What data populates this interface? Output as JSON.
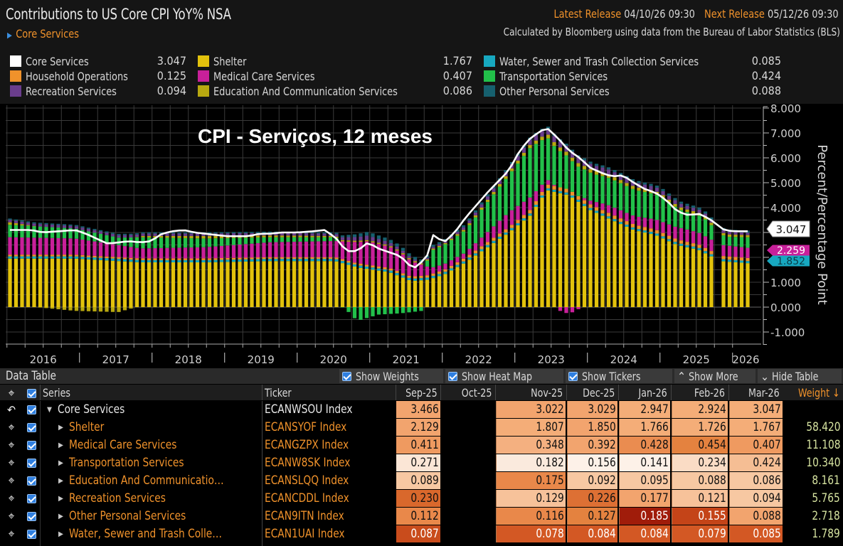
{
  "header": {
    "title": "Contributions to US Core CPI YoY% NSA",
    "selected_series": "Core Services",
    "latest_release_label": "Latest Release",
    "latest_release_value": "04/10/26 09:30",
    "next_release_label": "Next Release",
    "next_release_value": "05/12/26 09:30",
    "source_note": "Calculated by Bloomberg using data from the Bureau of Labor Statistics (BLS)"
  },
  "legend": [
    {
      "name": "Core Services",
      "value": "3.047",
      "color": "#ffffff"
    },
    {
      "name": "Household Operations",
      "value": "0.125",
      "color": "#f0922b"
    },
    {
      "name": "Recreation Services",
      "value": "0.094",
      "color": "#6a3d8c"
    },
    {
      "name": "Shelter",
      "value": "1.767",
      "color": "#e2c20c"
    },
    {
      "name": "Medical Care Services",
      "value": "0.407",
      "color": "#c8209a"
    },
    {
      "name": "Education And Communication Services",
      "value": "0.086",
      "color": "#b8a810"
    },
    {
      "name": "Water, Sewer and Trash Collection Services",
      "value": "0.085",
      "color": "#17a8c0"
    },
    {
      "name": "Transportation Services",
      "value": "0.424",
      "color": "#22c04a"
    },
    {
      "name": "Other Personal Services",
      "value": "0.088",
      "color": "#16606e"
    }
  ],
  "overlay_title": "CPI - Serviços, 12 meses",
  "chart_data": {
    "type": "bar",
    "stacked": true,
    "title": "Contributions to US Core CPI YoY% NSA",
    "ylabel": "Percent/Percentage Point",
    "xlabel": "",
    "ylim": [
      -1.5,
      8.0
    ],
    "yticks": [
      "8.000",
      "7.000",
      "6.000",
      "5.000",
      "4.000",
      "1.000",
      "0.000",
      "-1.000"
    ],
    "year_labels": [
      "2016",
      "2017",
      "2018",
      "2019",
      "2020",
      "2021",
      "2022",
      "2023",
      "2024",
      "2025",
      "2026"
    ],
    "start": "2016-01",
    "end": "2026-03",
    "missing": [
      "2025-10"
    ],
    "grid": true,
    "legend_position": "top",
    "last_value_labels": [
      {
        "value": "3.047",
        "color": "#ffffff",
        "text_color": "#111111"
      },
      {
        "value": "2.259",
        "color": "#c8209a",
        "text_color": "#ffffff"
      },
      {
        "value": "1.852",
        "color": "#17a8c0",
        "text_color": "#0a3a44"
      }
    ],
    "total_series": {
      "name": "Core Services",
      "color": "#ffffff"
    },
    "total_anchors": [
      [
        0,
        3.1
      ],
      [
        2,
        3.1
      ],
      [
        4,
        3.1
      ],
      [
        6,
        3.0
      ],
      [
        9,
        3.05
      ],
      [
        12,
        3.1
      ],
      [
        14,
        2.95
      ],
      [
        18,
        2.55
      ],
      [
        20,
        2.6
      ],
      [
        22,
        2.65
      ],
      [
        24,
        2.6
      ],
      [
        26,
        2.65
      ],
      [
        28,
        2.95
      ],
      [
        30,
        3.05
      ],
      [
        32,
        3.1
      ],
      [
        34,
        3.0
      ],
      [
        36,
        2.95
      ],
      [
        40,
        2.85
      ],
      [
        44,
        2.85
      ],
      [
        46,
        2.95
      ],
      [
        48,
        2.95
      ],
      [
        50,
        3.0
      ],
      [
        53,
        3.0
      ],
      [
        56,
        3.05
      ],
      [
        58,
        3.1
      ],
      [
        60,
        2.8
      ],
      [
        62,
        2.25
      ],
      [
        64,
        2.25
      ],
      [
        66,
        2.6
      ],
      [
        68,
        2.35
      ],
      [
        70,
        2.2
      ],
      [
        72,
        2.05
      ],
      [
        74,
        1.6
      ],
      [
        75,
        1.6
      ],
      [
        77,
        2.1
      ],
      [
        78,
        2.9
      ],
      [
        80,
        2.6
      ],
      [
        82,
        3.0
      ],
      [
        84,
        3.6
      ],
      [
        88,
        4.6
      ],
      [
        92,
        5.5
      ],
      [
        94,
        6.3
      ],
      [
        96,
        6.8
      ],
      [
        98,
        7.1
      ],
      [
        99,
        7.2
      ],
      [
        101,
        6.8
      ],
      [
        103,
        6.3
      ],
      [
        105,
        6.0
      ],
      [
        107,
        5.6
      ],
      [
        109,
        5.4
      ],
      [
        111,
        5.25
      ],
      [
        113,
        5.3
      ],
      [
        115,
        5.0
      ],
      [
        117,
        4.75
      ],
      [
        119,
        4.6
      ],
      [
        121,
        4.3
      ],
      [
        123,
        3.85
      ],
      [
        125,
        3.7
      ],
      [
        127,
        3.75
      ],
      [
        129,
        3.55
      ],
      [
        131,
        3.15
      ],
      [
        133,
        3.05
      ],
      [
        135,
        3.05
      ],
      [
        136,
        3.047
      ]
    ],
    "series": [
      {
        "name": "Shelter",
        "color": "#e2c20c",
        "anchors": [
          [
            0,
            1.95
          ],
          [
            12,
            1.95
          ],
          [
            24,
            1.8
          ],
          [
            36,
            1.8
          ],
          [
            48,
            1.85
          ],
          [
            60,
            1.85
          ],
          [
            64,
            1.6
          ],
          [
            70,
            1.4
          ],
          [
            74,
            1.05
          ],
          [
            77,
            1.1
          ],
          [
            80,
            1.3
          ],
          [
            84,
            1.8
          ],
          [
            88,
            2.4
          ],
          [
            92,
            3.0
          ],
          [
            96,
            3.7
          ],
          [
            99,
            4.7
          ],
          [
            103,
            4.5
          ],
          [
            107,
            3.9
          ],
          [
            111,
            3.5
          ],
          [
            115,
            3.1
          ],
          [
            119,
            2.9
          ],
          [
            123,
            2.5
          ],
          [
            127,
            2.3
          ],
          [
            131,
            1.85
          ],
          [
            136,
            1.767
          ]
        ]
      },
      {
        "name": "Water, Sewer and Trash Collection Services",
        "color": "#17a8c0",
        "anchors": [
          [
            0,
            0.09
          ],
          [
            136,
            0.085
          ]
        ]
      },
      {
        "name": "Household Operations",
        "color": "#f0922b",
        "anchors": [
          [
            0,
            0.07
          ],
          [
            60,
            0.07
          ],
          [
            80,
            0.1
          ],
          [
            100,
            0.15
          ],
          [
            136,
            0.125
          ]
        ]
      },
      {
        "name": "Medical Care Services",
        "color": "#c8209a",
        "anchors": [
          [
            0,
            0.7
          ],
          [
            12,
            0.65
          ],
          [
            24,
            0.4
          ],
          [
            36,
            0.45
          ],
          [
            48,
            0.6
          ],
          [
            60,
            0.65
          ],
          [
            66,
            0.95
          ],
          [
            72,
            0.8
          ],
          [
            78,
            0.25
          ],
          [
            84,
            0.2
          ],
          [
            92,
            0.6
          ],
          [
            96,
            0.5
          ],
          [
            100,
            0.1
          ],
          [
            102,
            -0.25
          ],
          [
            104,
            -0.2
          ],
          [
            106,
            0.1
          ],
          [
            110,
            0.3
          ],
          [
            116,
            0.35
          ],
          [
            124,
            0.5
          ],
          [
            130,
            0.45
          ],
          [
            136,
            0.407
          ]
        ]
      },
      {
        "name": "Transportation Services",
        "color": "#22c04a",
        "anchors": [
          [
            0,
            0.5
          ],
          [
            12,
            0.4
          ],
          [
            20,
            0.3
          ],
          [
            24,
            0.45
          ],
          [
            36,
            0.35
          ],
          [
            48,
            0.2
          ],
          [
            60,
            0.15
          ],
          [
            62,
            -0.1
          ],
          [
            64,
            -0.55
          ],
          [
            68,
            -0.3
          ],
          [
            72,
            -0.25
          ],
          [
            76,
            -0.15
          ],
          [
            78,
            0.7
          ],
          [
            84,
            0.9
          ],
          [
            92,
            1.5
          ],
          [
            96,
            2.0
          ],
          [
            100,
            1.6
          ],
          [
            104,
            1.2
          ],
          [
            108,
            1.1
          ],
          [
            112,
            1.1
          ],
          [
            116,
            1.05
          ],
          [
            120,
            1.0
          ],
          [
            124,
            0.7
          ],
          [
            128,
            0.7
          ],
          [
            132,
            0.35
          ],
          [
            136,
            0.424
          ]
        ]
      },
      {
        "name": "Education And Communication Services",
        "color": "#b8a810",
        "anchors": [
          [
            0,
            0.1
          ],
          [
            12,
            -0.15
          ],
          [
            20,
            -0.2
          ],
          [
            24,
            0.05
          ],
          [
            36,
            0.1
          ],
          [
            60,
            0.05
          ],
          [
            80,
            0.05
          ],
          [
            100,
            0.15
          ],
          [
            136,
            0.086
          ]
        ]
      },
      {
        "name": "Recreation Services",
        "color": "#6a3d8c",
        "anchors": [
          [
            0,
            0.1
          ],
          [
            60,
            0.1
          ],
          [
            66,
            0.18
          ],
          [
            76,
            0.05
          ],
          [
            90,
            0.15
          ],
          [
            100,
            0.25
          ],
          [
            112,
            0.2
          ],
          [
            136,
            0.094
          ]
        ]
      },
      {
        "name": "Other Personal Services",
        "color": "#16606e",
        "anchors": [
          [
            0,
            0.05
          ],
          [
            60,
            0.05
          ],
          [
            66,
            0.15
          ],
          [
            80,
            0.08
          ],
          [
            136,
            0.088
          ]
        ]
      }
    ]
  },
  "table": {
    "title": "Data Table",
    "toolbar": [
      {
        "label": "Show Weights",
        "checked": true
      },
      {
        "label": "Show Heat Map",
        "checked": true
      },
      {
        "label": "Show Tickers",
        "checked": true
      },
      {
        "label": "Show More",
        "icon": "chevrons-up"
      },
      {
        "label": "Hide Table",
        "icon": "chevrons-down"
      }
    ],
    "columns": {
      "series": "Series",
      "ticker": "Ticker",
      "months": [
        "Sep-25",
        "Oct-25",
        "Nov-25",
        "Dec-25",
        "Jan-26",
        "Feb-26",
        "Mar-26"
      ],
      "weight": "Weight ↓"
    },
    "rows": [
      {
        "series": "Core Services",
        "ticker": "ECANWSOU Index",
        "values": [
          "3.466",
          "",
          "3.022",
          "3.029",
          "2.947",
          "2.924",
          "3.047"
        ],
        "weight": "",
        "parent": true
      },
      {
        "series": "Shelter",
        "ticker": "ECANSYOF Index",
        "values": [
          "2.129",
          "",
          "1.807",
          "1.850",
          "1.766",
          "1.726",
          "1.767"
        ],
        "weight": "58.420"
      },
      {
        "series": "Medical Care Services",
        "ticker": "ECANGZPX Index",
        "values": [
          "0.411",
          "",
          "0.348",
          "0.392",
          "0.428",
          "0.454",
          "0.407"
        ],
        "weight": "11.108"
      },
      {
        "series": "Transportation Services",
        "ticker": "ECANW8SK Index",
        "values": [
          "0.271",
          "",
          "0.182",
          "0.156",
          "0.141",
          "0.234",
          "0.424"
        ],
        "weight": "10.340"
      },
      {
        "series": "Education And Communicatio…",
        "ticker": "ECANSLQQ Index",
        "values": [
          "0.089",
          "",
          "0.175",
          "0.092",
          "0.095",
          "0.088",
          "0.086"
        ],
        "weight": "8.161"
      },
      {
        "series": "Recreation Services",
        "ticker": "ECANCDDL Index",
        "values": [
          "0.230",
          "",
          "0.129",
          "0.226",
          "0.177",
          "0.121",
          "0.094"
        ],
        "weight": "5.765"
      },
      {
        "series": "Other Personal Services",
        "ticker": "ECAN9ITN Index",
        "values": [
          "0.112",
          "",
          "0.116",
          "0.127",
          "0.185",
          "0.155",
          "0.088"
        ],
        "weight": "2.718"
      },
      {
        "series": "Water, Sewer and Trash Colle…",
        "ticker": "ECAN1UAI Index",
        "values": [
          "0.087",
          "",
          "0.078",
          "0.084",
          "0.084",
          "0.079",
          "0.085"
        ],
        "weight": "1.789"
      }
    ],
    "heat_colors": [
      [
        "#f2a46e",
        "",
        "#f2a46e",
        "#f2a46e",
        "#f4ad78",
        "#f4ad78",
        "#f4ad78"
      ],
      [
        "#f2a46e",
        "",
        "#f4ad78",
        "#f2a46e",
        "#f4ad78",
        "#f4ad78",
        "#f4ad78"
      ],
      [
        "#ef9a60",
        "",
        "#f4b080",
        "#f2a46e",
        "#ea8c50",
        "#e4823f",
        "#ef9a60"
      ],
      [
        "#fbe6d6",
        "",
        "#faeadd",
        "#fdf1e8",
        "#fdf1e8",
        "#fadcc5",
        "#f5be94"
      ],
      [
        "#f7c8a2",
        "",
        "#e9884a",
        "#f7c8a2",
        "#f7c8a2",
        "#f7c8a2",
        "#f7c8a2"
      ],
      [
        "#d9682c",
        "",
        "#f7c29a",
        "#dd7034",
        "#f2a46e",
        "#f7c29a",
        "#f7c8a2"
      ],
      [
        "#e9884a",
        "",
        "#e9884a",
        "#e4823f",
        "#a01c0a",
        "#c44418",
        "#f2a46e"
      ],
      [
        "#c94c1c",
        "",
        "#d35824",
        "#d35824",
        "#d35824",
        "#d35824",
        "#d35824"
      ]
    ],
    "light_text": [
      [
        false,
        false,
        false,
        false,
        false,
        false,
        false
      ],
      [
        false,
        false,
        false,
        false,
        false,
        false,
        false
      ],
      [
        false,
        false,
        false,
        false,
        false,
        false,
        false
      ],
      [
        false,
        false,
        false,
        false,
        false,
        false,
        false
      ],
      [
        false,
        false,
        false,
        false,
        false,
        false,
        false
      ],
      [
        false,
        false,
        false,
        false,
        false,
        false,
        false
      ],
      [
        false,
        false,
        false,
        false,
        true,
        true,
        false
      ],
      [
        true,
        false,
        true,
        true,
        true,
        true,
        true
      ]
    ]
  }
}
